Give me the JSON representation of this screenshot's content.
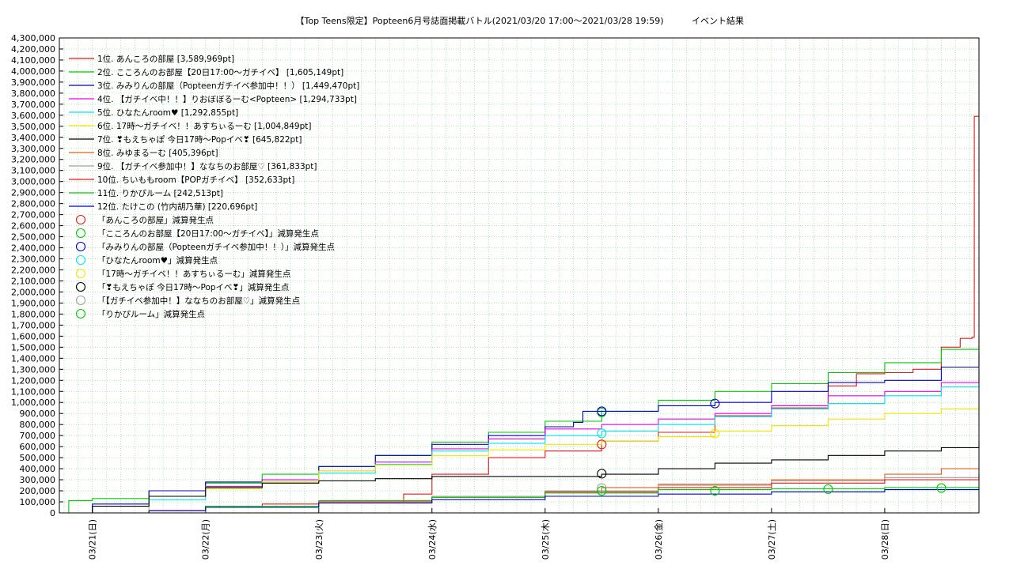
{
  "chart_data": {
    "type": "line",
    "title": "【Top Teens限定】Popteen6月号誌面掲載バトル(2021/03/20 17:00～2021/03/28 19:59)",
    "subtitle": "イベント結果",
    "xlabel": "",
    "ylabel": "",
    "x_range": [
      "2021-03-20T17:00",
      "2021-03-28T19:59"
    ],
    "ylim": [
      0,
      4300000
    ],
    "ytick_step": 100000,
    "grid": true,
    "legend_position": "top-left",
    "x_ticks": [
      {
        "label": "03/21(日)",
        "t": "2021-03-21T00:00"
      },
      {
        "label": "03/22(月)",
        "t": "2021-03-22T00:00"
      },
      {
        "label": "03/23(火)",
        "t": "2021-03-23T00:00"
      },
      {
        "label": "03/24(水)",
        "t": "2021-03-24T00:00"
      },
      {
        "label": "03/25(木)",
        "t": "2021-03-25T00:00"
      },
      {
        "label": "03/26(金)",
        "t": "2021-03-26T00:00"
      },
      {
        "label": "03/27(土)",
        "t": "2021-03-27T00:00"
      },
      {
        "label": "03/28(日)",
        "t": "2021-03-28T00:00"
      }
    ],
    "series": [
      {
        "name": "1位. あんころの部屋 [3,589,969pt]",
        "color": "#e41a1c",
        "points": [
          [
            "2021-03-20T17:00",
            0
          ],
          [
            "2021-03-21T12:00",
            20000
          ],
          [
            "2021-03-22T00:00",
            60000
          ],
          [
            "2021-03-22T12:00",
            80000
          ],
          [
            "2021-03-23T00:00",
            100000
          ],
          [
            "2021-03-23T18:00",
            170000
          ],
          [
            "2021-03-24T00:00",
            350000
          ],
          [
            "2021-03-24T12:00",
            500000
          ],
          [
            "2021-03-25T00:00",
            560000
          ],
          [
            "2021-03-25T12:00",
            650000
          ],
          [
            "2021-03-26T00:00",
            730000
          ],
          [
            "2021-03-26T12:00",
            880000
          ],
          [
            "2021-03-27T00:00",
            950000
          ],
          [
            "2021-03-27T12:00",
            1150000
          ],
          [
            "2021-03-27T18:00",
            1260000
          ],
          [
            "2021-03-28T00:00",
            1270000
          ],
          [
            "2021-03-28T06:00",
            1300000
          ],
          [
            "2021-03-28T12:00",
            1500000
          ],
          [
            "2021-03-28T16:00",
            1580000
          ],
          [
            "2021-03-28T18:30",
            1590000
          ],
          [
            "2021-03-28T19:00",
            3589969
          ],
          [
            "2021-03-28T19:59",
            3589969
          ]
        ]
      },
      {
        "name": "2位. こころんのお部屋【20日17:00～ガチイベ】 [1,605,149pt]",
        "color": "#00cc00",
        "points": [
          [
            "2021-03-20T17:00",
            0
          ],
          [
            "2021-03-20T19:00",
            110000
          ],
          [
            "2021-03-21T00:00",
            130000
          ],
          [
            "2021-03-21T12:00",
            200000
          ],
          [
            "2021-03-22T00:00",
            270000
          ],
          [
            "2021-03-22T12:00",
            350000
          ],
          [
            "2021-03-23T00:00",
            420000
          ],
          [
            "2021-03-23T12:00",
            520000
          ],
          [
            "2021-03-24T00:00",
            640000
          ],
          [
            "2021-03-24T12:00",
            730000
          ],
          [
            "2021-03-25T00:00",
            830000
          ],
          [
            "2021-03-25T12:00",
            920000
          ],
          [
            "2021-03-26T00:00",
            1020000
          ],
          [
            "2021-03-26T12:00",
            1100000
          ],
          [
            "2021-03-27T00:00",
            1170000
          ],
          [
            "2021-03-27T12:00",
            1270000
          ],
          [
            "2021-03-28T00:00",
            1360000
          ],
          [
            "2021-03-28T12:00",
            1480000
          ],
          [
            "2021-03-28T19:59",
            1605149
          ]
        ]
      },
      {
        "name": "3位. みみりんの部屋（Popteenガチイベ参加中！！） [1,449,470pt]",
        "color": "#0000cc",
        "points": [
          [
            "2021-03-20T17:00",
            0
          ],
          [
            "2021-03-21T00:00",
            80000
          ],
          [
            "2021-03-21T12:00",
            200000
          ],
          [
            "2021-03-22T00:00",
            280000
          ],
          [
            "2021-03-22T12:00",
            300000
          ],
          [
            "2021-03-23T00:00",
            420000
          ],
          [
            "2021-03-23T12:00",
            520000
          ],
          [
            "2021-03-24T00:00",
            620000
          ],
          [
            "2021-03-24T12:00",
            700000
          ],
          [
            "2021-03-25T00:00",
            780000
          ],
          [
            "2021-03-25T06:00",
            820000
          ],
          [
            "2021-03-25T08:00",
            920000
          ],
          [
            "2021-03-26T00:00",
            970000
          ],
          [
            "2021-03-26T12:00",
            1000000
          ],
          [
            "2021-03-27T00:00",
            1100000
          ],
          [
            "2021-03-27T12:00",
            1180000
          ],
          [
            "2021-03-28T00:00",
            1200000
          ],
          [
            "2021-03-28T12:00",
            1320000
          ],
          [
            "2021-03-28T19:59",
            1449470
          ]
        ]
      },
      {
        "name": "4位. 【ガチイベ中！！】りおぼぼるーむ<Popteen> [1,294,733pt]",
        "color": "#ee00ee",
        "points": [
          [
            "2021-03-20T17:00",
            0
          ],
          [
            "2021-03-21T12:00",
            150000
          ],
          [
            "2021-03-22T00:00",
            240000
          ],
          [
            "2021-03-22T12:00",
            300000
          ],
          [
            "2021-03-23T00:00",
            380000
          ],
          [
            "2021-03-23T12:00",
            460000
          ],
          [
            "2021-03-24T00:00",
            580000
          ],
          [
            "2021-03-24T12:00",
            670000
          ],
          [
            "2021-03-25T00:00",
            760000
          ],
          [
            "2021-03-25T12:00",
            800000
          ],
          [
            "2021-03-26T00:00",
            850000
          ],
          [
            "2021-03-26T12:00",
            900000
          ],
          [
            "2021-03-27T00:00",
            970000
          ],
          [
            "2021-03-27T12:00",
            1060000
          ],
          [
            "2021-03-28T00:00",
            1100000
          ],
          [
            "2021-03-28T12:00",
            1180000
          ],
          [
            "2021-03-28T19:59",
            1294733
          ]
        ]
      },
      {
        "name": "5位. ひなたんroom♥ [1,292,855pt]",
        "color": "#00e5ee",
        "points": [
          [
            "2021-03-20T17:00",
            0
          ],
          [
            "2021-03-21T12:00",
            120000
          ],
          [
            "2021-03-22T00:00",
            230000
          ],
          [
            "2021-03-22T12:00",
            280000
          ],
          [
            "2021-03-23T00:00",
            360000
          ],
          [
            "2021-03-23T12:00",
            440000
          ],
          [
            "2021-03-24T00:00",
            560000
          ],
          [
            "2021-03-24T12:00",
            630000
          ],
          [
            "2021-03-25T00:00",
            700000
          ],
          [
            "2021-03-25T12:00",
            740000
          ],
          [
            "2021-03-26T00:00",
            800000
          ],
          [
            "2021-03-26T12:00",
            870000
          ],
          [
            "2021-03-27T00:00",
            940000
          ],
          [
            "2021-03-27T12:00",
            990000
          ],
          [
            "2021-03-28T00:00",
            1060000
          ],
          [
            "2021-03-28T12:00",
            1140000
          ],
          [
            "2021-03-28T19:59",
            1292855
          ]
        ]
      },
      {
        "name": "6位. 17時～ガチイベ！！あすちぃるーむ [1,004,849pt]",
        "color": "#f2e600",
        "points": [
          [
            "2021-03-20T17:00",
            0
          ],
          [
            "2021-03-21T12:00",
            150000
          ],
          [
            "2021-03-22T00:00",
            220000
          ],
          [
            "2021-03-22T12:00",
            280000
          ],
          [
            "2021-03-23T00:00",
            380000
          ],
          [
            "2021-03-23T12:00",
            430000
          ],
          [
            "2021-03-24T00:00",
            520000
          ],
          [
            "2021-03-24T12:00",
            570000
          ],
          [
            "2021-03-25T00:00",
            620000
          ],
          [
            "2021-03-25T12:00",
            650000
          ],
          [
            "2021-03-26T00:00",
            690000
          ],
          [
            "2021-03-26T12:00",
            740000
          ],
          [
            "2021-03-27T00:00",
            790000
          ],
          [
            "2021-03-27T12:00",
            850000
          ],
          [
            "2021-03-28T00:00",
            900000
          ],
          [
            "2021-03-28T12:00",
            940000
          ],
          [
            "2021-03-28T19:59",
            1004849
          ]
        ]
      },
      {
        "name": "7位. ❣もえちゃぽ 今日17時～Popイベ❣ [645,822pt]",
        "color": "#000000",
        "points": [
          [
            "2021-03-20T17:00",
            0
          ],
          [
            "2021-03-21T00:00",
            60000
          ],
          [
            "2021-03-21T12:00",
            150000
          ],
          [
            "2021-03-22T00:00",
            230000
          ],
          [
            "2021-03-22T12:00",
            270000
          ],
          [
            "2021-03-23T00:00",
            290000
          ],
          [
            "2021-03-23T12:00",
            310000
          ],
          [
            "2021-03-24T00:00",
            330000
          ],
          [
            "2021-03-25T00:00",
            330000
          ],
          [
            "2021-03-25T12:00",
            350000
          ],
          [
            "2021-03-26T00:00",
            400000
          ],
          [
            "2021-03-26T12:00",
            450000
          ],
          [
            "2021-03-27T00:00",
            480000
          ],
          [
            "2021-03-27T12:00",
            520000
          ],
          [
            "2021-03-28T00:00",
            560000
          ],
          [
            "2021-03-28T12:00",
            590000
          ],
          [
            "2021-03-28T19:59",
            645822
          ]
        ]
      },
      {
        "name": "8位. みゆまるーむ [405,396pt]",
        "color": "#e06018",
        "points": [
          [
            "2021-03-20T17:00",
            0
          ],
          [
            "2021-03-22T00:00",
            50000
          ],
          [
            "2021-03-23T00:00",
            100000
          ],
          [
            "2021-03-24T00:00",
            140000
          ],
          [
            "2021-03-25T00:00",
            190000
          ],
          [
            "2021-03-25T12:00",
            230000
          ],
          [
            "2021-03-26T00:00",
            260000
          ],
          [
            "2021-03-27T00:00",
            300000
          ],
          [
            "2021-03-28T00:00",
            350000
          ],
          [
            "2021-03-28T12:00",
            400000
          ],
          [
            "2021-03-28T19:59",
            405396
          ]
        ]
      },
      {
        "name": "9位. 【ガチイベ参加中！】ななちのお部屋♡ [361,833pt]",
        "color": "#a0a0a0",
        "points": [
          [
            "2021-03-20T17:00",
            0
          ],
          [
            "2021-03-22T00:00",
            60000
          ],
          [
            "2021-03-23T00:00",
            110000
          ],
          [
            "2021-03-24T00:00",
            150000
          ],
          [
            "2021-03-25T00:00",
            200000
          ],
          [
            "2021-03-26T00:00",
            250000
          ],
          [
            "2021-03-27T00:00",
            290000
          ],
          [
            "2021-03-28T00:00",
            320000
          ],
          [
            "2021-03-28T19:59",
            361833
          ]
        ]
      },
      {
        "name": "10位. ちいももroom【POPガチイベ】 [352,633pt]",
        "color": "#e41a1c",
        "points": [
          [
            "2021-03-20T17:00",
            0
          ],
          [
            "2021-03-22T00:00",
            50000
          ],
          [
            "2021-03-23T00:00",
            100000
          ],
          [
            "2021-03-24T00:00",
            140000
          ],
          [
            "2021-03-25T00:00",
            190000
          ],
          [
            "2021-03-26T00:00",
            230000
          ],
          [
            "2021-03-27T00:00",
            270000
          ],
          [
            "2021-03-28T00:00",
            300000
          ],
          [
            "2021-03-28T19:59",
            352633
          ]
        ]
      },
      {
        "name": "11位. りかぴルーム [242,513pt]",
        "color": "#00cc00",
        "points": [
          [
            "2021-03-20T17:00",
            0
          ],
          [
            "2021-03-22T00:00",
            60000
          ],
          [
            "2021-03-23T00:00",
            110000
          ],
          [
            "2021-03-24T00:00",
            140000
          ],
          [
            "2021-03-25T00:00",
            180000
          ],
          [
            "2021-03-26T00:00",
            210000
          ],
          [
            "2021-03-27T00:00",
            220000
          ],
          [
            "2021-03-28T00:00",
            230000
          ],
          [
            "2021-03-28T19:59",
            242513
          ]
        ]
      },
      {
        "name": "12位. たけこの (竹内胡乃華) [220,696pt]",
        "color": "#0000cc",
        "points": [
          [
            "2021-03-20T17:00",
            0
          ],
          [
            "2021-03-21T12:00",
            20000
          ],
          [
            "2021-03-22T00:00",
            50000
          ],
          [
            "2021-03-23T00:00",
            90000
          ],
          [
            "2021-03-24T00:00",
            120000
          ],
          [
            "2021-03-25T00:00",
            150000
          ],
          [
            "2021-03-26T00:00",
            170000
          ],
          [
            "2021-03-27T00:00",
            190000
          ],
          [
            "2021-03-28T00:00",
            210000
          ],
          [
            "2021-03-28T19:59",
            220696
          ]
        ]
      }
    ],
    "marker_legend": [
      {
        "name": "「あんころの部屋」減算発生点",
        "color": "#e41a1c"
      },
      {
        "name": "「こころんのお部屋【20日17:00～ガチイベ】」減算発生点",
        "color": "#00cc00"
      },
      {
        "name": "「みみりんの部屋（Popteenガチイベ参加中！！）」減算発生点",
        "color": "#0000cc"
      },
      {
        "name": "「ひなたんroom♥」減算発生点",
        "color": "#00e5ee"
      },
      {
        "name": "「17時～ガチイベ！！あすちぃるーむ」減算発生点",
        "color": "#f2e600"
      },
      {
        "name": "「❣もえちゃぽ 今日17時～Popイベ❣」減算発生点",
        "color": "#000000"
      },
      {
        "name": "「【ガチイベ参加中！】ななちのお部屋♡」減算発生点",
        "color": "#a0a0a0"
      },
      {
        "name": "「りかぴルーム」減算発生点",
        "color": "#00cc00"
      }
    ],
    "markers": [
      {
        "t": "2021-03-25T12:00",
        "y": 620000,
        "color": "#e41a1c"
      },
      {
        "t": "2021-03-25T12:00",
        "y": 910000,
        "color": "#00cc00"
      },
      {
        "t": "2021-03-25T12:00",
        "y": 920000,
        "color": "#0000cc"
      },
      {
        "t": "2021-03-26T12:00",
        "y": 990000,
        "color": "#0000cc"
      },
      {
        "t": "2021-03-25T12:00",
        "y": 720000,
        "color": "#00e5ee"
      },
      {
        "t": "2021-03-26T12:00",
        "y": 720000,
        "color": "#f2e600"
      },
      {
        "t": "2021-03-25T12:00",
        "y": 355000,
        "color": "#000000"
      },
      {
        "t": "2021-03-25T12:00",
        "y": 225000,
        "color": "#a0a0a0"
      },
      {
        "t": "2021-03-25T12:00",
        "y": 200000,
        "color": "#00cc00"
      },
      {
        "t": "2021-03-26T12:00",
        "y": 200000,
        "color": "#00cc00"
      },
      {
        "t": "2021-03-27T12:00",
        "y": 215000,
        "color": "#00cc00"
      },
      {
        "t": "2021-03-28T12:00",
        "y": 225000,
        "color": "#00cc00"
      }
    ]
  }
}
